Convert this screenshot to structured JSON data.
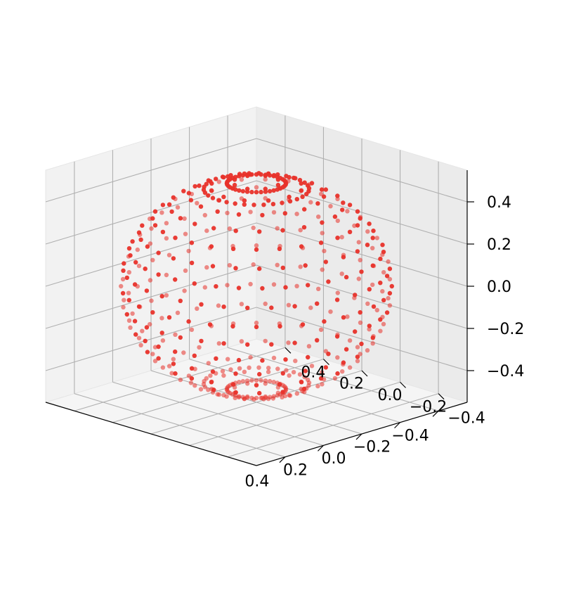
{
  "chart_data": {
    "type": "scatter",
    "projection": "3d",
    "title": "",
    "xlabel": "",
    "ylabel": "",
    "zlabel": "",
    "grid": true,
    "view": {
      "elev": 45,
      "azim": 45
    },
    "xlim": [
      -0.55,
      0.55
    ],
    "ylim": [
      -0.55,
      0.55
    ],
    "zlim": [
      -0.55,
      0.55
    ],
    "xticks": [
      -0.4,
      -0.2,
      0.0,
      0.2,
      0.4
    ],
    "xtick_labels": [
      "−0.4",
      "−0.2",
      "0.0",
      "0.2",
      "0.4"
    ],
    "yticks": [
      -0.4,
      -0.2,
      0.0,
      0.2,
      0.4
    ],
    "ytick_labels": [
      "−0.4",
      "−0.2",
      "0.0",
      "0.2",
      "0.4"
    ],
    "zticks": [
      -0.4,
      -0.2,
      0.0,
      0.2,
      0.4
    ],
    "ztick_labels": [
      "−0.4",
      "−0.2",
      "0.0",
      "0.2",
      "0.4"
    ],
    "series": [
      {
        "marker_color": "#e8322a",
        "description": "points distributed on a sphere of radius 0.5 centered at origin, with a denser ring near each pole",
        "radius": 0.5,
        "center": [
          0,
          0,
          0
        ],
        "point_count": 600
      }
    ],
    "colors": {
      "marker": "#e8322a",
      "pane_left": "#f2f2f2",
      "pane_right": "#ebebeb",
      "pane_floor": "#f5f5f5",
      "grid": "#b0b0b0"
    }
  }
}
